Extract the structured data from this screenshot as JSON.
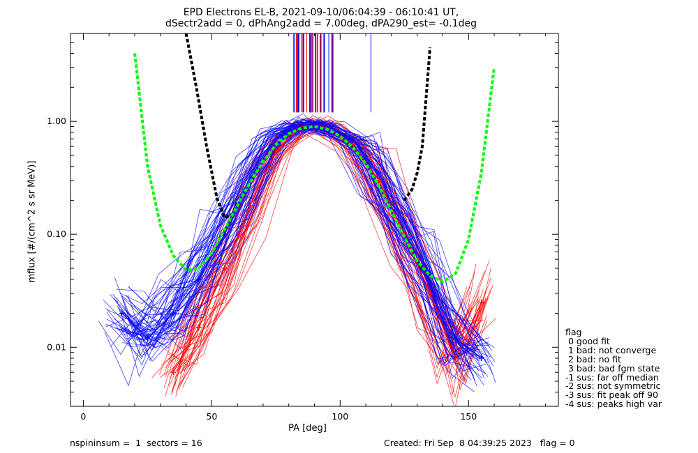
{
  "title_line1": "EPD Electrons EL-B, 2021-09-10/06:04:39 - 06:10:41 UT,",
  "title_line2": "dSectr2add = 0, dPhAng2add = 7.00deg, dPA290_est=  -0.1deg",
  "legend": {
    "heading": "flag",
    "items": [
      " 0 good fit",
      " 1 bad: not converge",
      " 2 bad: no fit",
      " 3 bad: bad fgm state",
      "-1 sus: far off median",
      "-2 sus: not symmetric",
      "-3 sus: fit peak off 90",
      "-4 sus: peaks high var"
    ]
  },
  "footer": {
    "left": "nspininsum =  1  sectors = 16",
    "right": "Created: Fri Sep  8 04:39:25 2023   flag = 0"
  },
  "colors": {
    "red_series": "#ff0000",
    "blue_series": "#0000ff",
    "green_fit": "#00ff00",
    "black_fit": "#000000"
  },
  "chart_data": {
    "type": "line",
    "xlabel": "PA [deg]",
    "ylabel": "mflux [#/(cm^2 s sr MeV)]",
    "xlim": [
      -5,
      185
    ],
    "ylim": [
      0.003,
      6
    ],
    "yscale": "log",
    "xticks": [
      0,
      50,
      100,
      150
    ],
    "xtick_labels": [
      "0",
      "50",
      "100",
      "150"
    ],
    "yticks": [
      0.01,
      0.1,
      1.0
    ],
    "ytick_labels": [
      "0.01",
      "0.10",
      "1.00"
    ],
    "series": [
      {
        "color": "green",
        "style": "dashed",
        "x": [
          20,
          25,
          30,
          35,
          40,
          45,
          50,
          55,
          60,
          65,
          70,
          75,
          80,
          85,
          90,
          95,
          100,
          105,
          110,
          115,
          120,
          125,
          130,
          135,
          140,
          145,
          150,
          155,
          160
        ],
        "y": [
          4.0,
          0.4,
          0.12,
          0.065,
          0.048,
          0.05,
          0.068,
          0.11,
          0.18,
          0.29,
          0.44,
          0.62,
          0.78,
          0.87,
          0.9,
          0.85,
          0.74,
          0.59,
          0.42,
          0.27,
          0.16,
          0.095,
          0.058,
          0.043,
          0.038,
          0.045,
          0.09,
          0.35,
          3.0
        ]
      },
      {
        "color": "black",
        "style": "dashed",
        "x": [
          40,
          44,
          48,
          52,
          55,
          58,
          60,
          125,
          128,
          130,
          132,
          135
        ],
        "y": [
          6.0,
          2.0,
          0.6,
          0.21,
          0.14,
          0.15,
          0.19,
          0.2,
          0.25,
          0.35,
          0.6,
          4.5
        ]
      },
      {
        "color": "blue",
        "style": "solid",
        "x": [
          15,
          25,
          35,
          45,
          55,
          65,
          75,
          85,
          90,
          95,
          105,
          115,
          125,
          135,
          145,
          155
        ],
        "y": [
          0.02,
          0.012,
          0.02,
          0.04,
          0.1,
          0.3,
          0.7,
          0.92,
          0.95,
          0.9,
          0.7,
          0.35,
          0.13,
          0.045,
          0.012,
          0.008
        ]
      },
      {
        "color": "red",
        "style": "solid",
        "x": [
          35,
          45,
          55,
          65,
          75,
          85,
          90,
          95,
          105,
          115,
          125,
          135,
          145,
          155
        ],
        "y": [
          0.006,
          0.015,
          0.05,
          0.18,
          0.55,
          0.9,
          0.95,
          0.88,
          0.62,
          0.3,
          0.1,
          0.03,
          0.008,
          0.025
        ]
      }
    ]
  }
}
